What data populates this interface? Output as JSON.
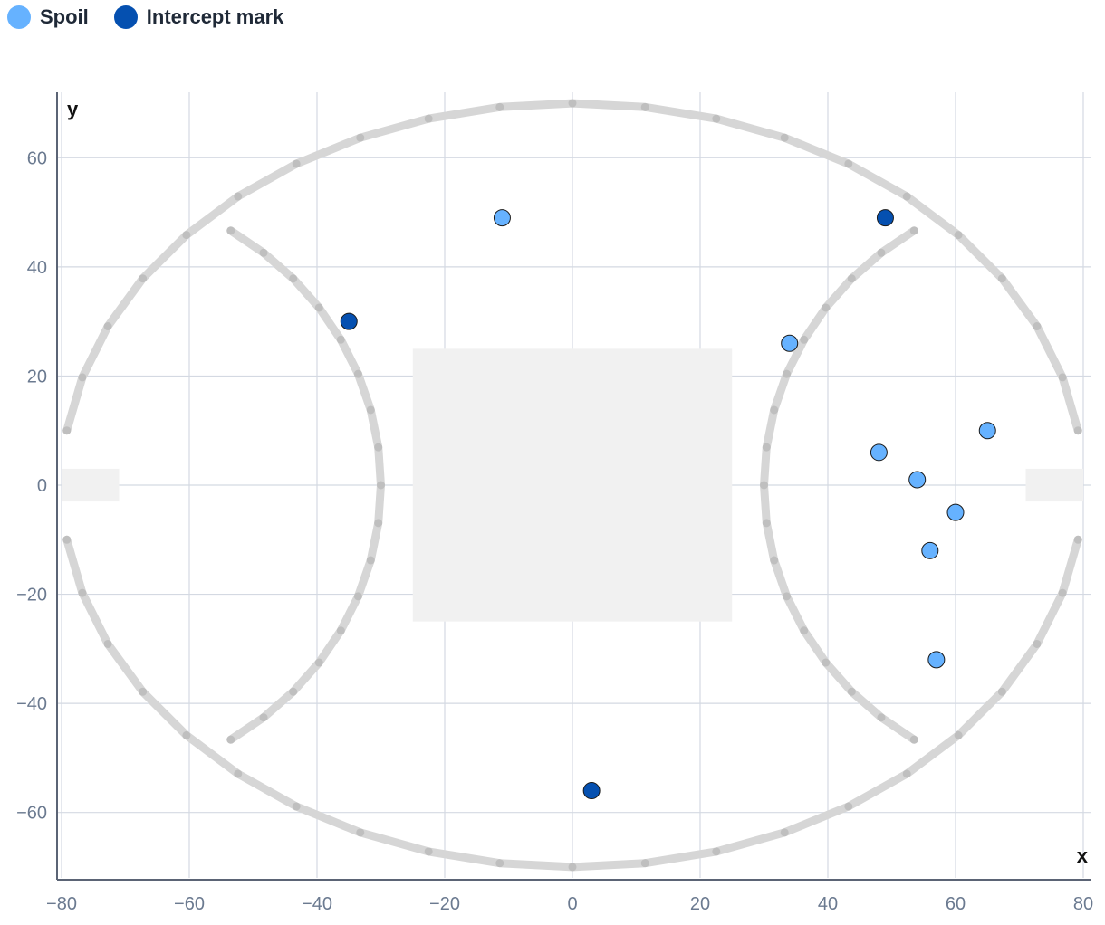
{
  "legend": [
    {
      "name": "Spoil",
      "color": "#66b2ff"
    },
    {
      "name": "Intercept mark",
      "color": "#0550b0"
    }
  ],
  "chart_data": {
    "type": "scatter",
    "xlabel": "x",
    "ylabel": "y",
    "xlim": [
      -80,
      80
    ],
    "ylim": [
      -72,
      72
    ],
    "x_ticks": [
      -80,
      -60,
      -40,
      -20,
      0,
      20,
      40,
      60,
      80
    ],
    "y_ticks": [
      -60,
      -40,
      -20,
      0,
      20,
      40,
      60
    ],
    "x_tick_labels": [
      "−80",
      "−60",
      "−40",
      "−20",
      "0",
      "20",
      "40",
      "60",
      "80"
    ],
    "y_tick_labels": [
      "−60",
      "−40",
      "−20",
      "0",
      "20",
      "40",
      "60"
    ],
    "grid": true,
    "legend_position": "top-left",
    "series": [
      {
        "name": "Spoil",
        "color": "#66b2ff",
        "points": [
          {
            "x": -11,
            "y": 49
          },
          {
            "x": 34,
            "y": 26
          },
          {
            "x": 48,
            "y": 6
          },
          {
            "x": 54,
            "y": 1
          },
          {
            "x": 65,
            "y": 10
          },
          {
            "x": 60,
            "y": -5
          },
          {
            "x": 56,
            "y": -12
          },
          {
            "x": 57,
            "y": -32
          }
        ]
      },
      {
        "name": "Intercept mark",
        "color": "#0550b0",
        "points": [
          {
            "x": 49,
            "y": 49
          },
          {
            "x": -35,
            "y": 30
          },
          {
            "x": 3,
            "y": -56
          }
        ]
      }
    ],
    "field": {
      "boundary_rx": 80,
      "boundary_ry": 70,
      "arc_center_x": 80,
      "arc_radius": 50,
      "centre_square_half": 25,
      "goal_square_x": [
        71,
        80
      ],
      "goal_square_half_height": 3
    }
  }
}
